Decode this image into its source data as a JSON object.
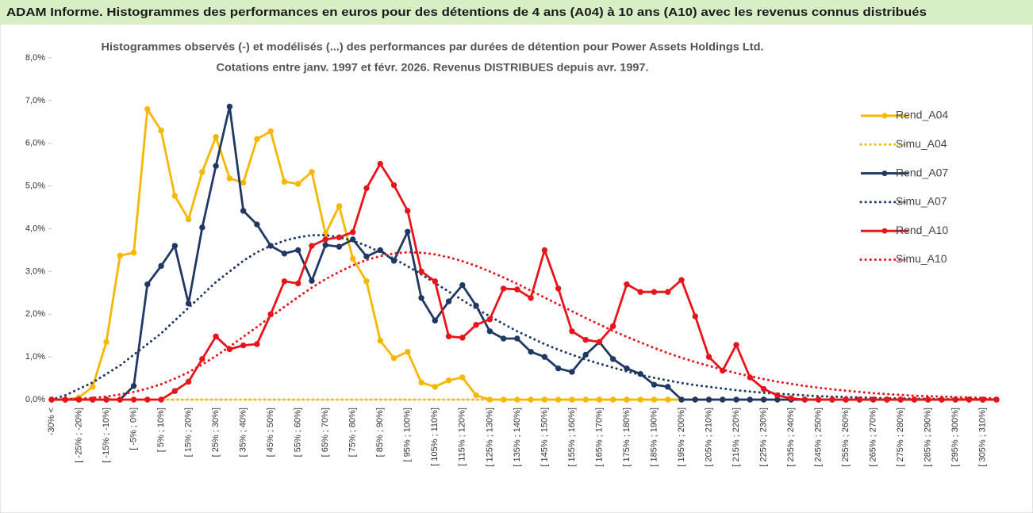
{
  "header": {
    "title": "ADAM Informe. Histogrammes des performances en euros pour des détentions de 4 ans (A04) à 10 ans (A10) avec les revenus connus distribués"
  },
  "chart_data": {
    "type": "line",
    "title": "Histogrammes observés (-) et modélisés (...) des performances par durées de détention pour Power Assets Holdings Ltd.",
    "subtitle": "Cotations entre janv. 1997 et févr. 2026. Revenus DISTRIBUES depuis avr. 1997.",
    "categories": [
      "-30% <",
      null,
      "[ -25% ; -20%]",
      null,
      "[ -15% ; -10%]",
      null,
      "[ -5% ; 0%]",
      null,
      "[ 5% ; 10%]",
      null,
      "[ 15% ; 20%]",
      null,
      "[ 25% ; 30%]",
      null,
      "[ 35% ; 40%]",
      null,
      "[ 45% ; 50%]",
      null,
      "[ 55% ; 60%]",
      null,
      "[ 65% ; 70%]",
      null,
      "[ 75% ; 80%]",
      null,
      "[ 85% ; 90%]",
      null,
      "[ 95% ; 100%]",
      null,
      "[ 105% ; 110%]",
      null,
      "[ 115% ; 120%]",
      null,
      "[ 125% ; 130%]",
      null,
      "[ 135% ; 140%]",
      null,
      "[ 145% ; 150%]",
      null,
      "[ 155% ; 160%]",
      null,
      "[ 165% ; 170%]",
      null,
      "[ 175% ; 180%]",
      null,
      "[ 185% ; 190%]",
      null,
      "[ 195% ; 200%]",
      null,
      "[ 205% ; 210%]",
      null,
      "[ 215% ; 220%]",
      null,
      "[ 225% ; 230%]",
      null,
      "[ 235% ; 240%]",
      null,
      "[ 245% ; 250%]",
      null,
      "[ 255% ; 260%]",
      null,
      "[ 265% ; 270%]",
      null,
      "[ 275% ; 280%]",
      null,
      "[ 285% ; 290%]",
      null,
      "[ 295% ; 300%]",
      null,
      "[ 305% ; 310%]",
      null
    ],
    "ylim": [
      0,
      8
    ],
    "yticks": [
      {
        "value": 0,
        "label": "0,0%"
      },
      {
        "value": 1,
        "label": "1,0%"
      },
      {
        "value": 2,
        "label": "2,0%"
      },
      {
        "value": 3,
        "label": "3,0%"
      },
      {
        "value": 4,
        "label": "4,0%"
      },
      {
        "value": 5,
        "label": "5,0%"
      },
      {
        "value": 6,
        "label": "6,0%"
      },
      {
        "value": 7,
        "label": "7,0%"
      },
      {
        "value": 8,
        "label": "8,0%"
      }
    ],
    "legend": "right",
    "series": [
      {
        "name": "Rend_A04",
        "color": "#f5b700",
        "style": "solid",
        "markers": true,
        "values": [
          0,
          0,
          0.05,
          0.3,
          1.35,
          3.37,
          3.44,
          6.8,
          6.3,
          4.77,
          4.22,
          5.33,
          6.15,
          5.18,
          5.08,
          6.1,
          6.28,
          5.1,
          5.05,
          5.33,
          3.88,
          4.53,
          3.3,
          2.77,
          1.38,
          0.97,
          1.12,
          0.4,
          0.3,
          0.45,
          0.52,
          0.1,
          0,
          0,
          0,
          0,
          0,
          0,
          0,
          0,
          0,
          0,
          0,
          0,
          0,
          0,
          0,
          0,
          0,
          0,
          0,
          0,
          0,
          0,
          0,
          0,
          0,
          0,
          0,
          0,
          0,
          0,
          0,
          0,
          0,
          0,
          0,
          0,
          0,
          0
        ]
      },
      {
        "name": "Simu_A04",
        "color": "#f5b700",
        "style": "dotted",
        "markers": false,
        "values": [
          0,
          0,
          0,
          0,
          0,
          0,
          0,
          0,
          0,
          0,
          0,
          0,
          0,
          0,
          0,
          0,
          0,
          0,
          0,
          0,
          0,
          0,
          0,
          0,
          0,
          0,
          0,
          0,
          0,
          0,
          0,
          0,
          0,
          0,
          0,
          0,
          0,
          0,
          0,
          0,
          0,
          0,
          0,
          0,
          0,
          0,
          0,
          0,
          0,
          0,
          0,
          0,
          0,
          0,
          0,
          0,
          0,
          0,
          0,
          0,
          0,
          0,
          0,
          0,
          0,
          0,
          0,
          0,
          0,
          0
        ]
      },
      {
        "name": "Rend_A07",
        "color": "#1f3864",
        "style": "solid",
        "markers": true,
        "values": [
          0,
          0,
          0,
          0,
          0,
          0,
          0.32,
          2.7,
          3.13,
          3.6,
          2.25,
          4.03,
          5.47,
          6.86,
          4.42,
          4.1,
          3.6,
          3.42,
          3.5,
          2.78,
          3.62,
          3.58,
          3.75,
          3.35,
          3.5,
          3.25,
          3.93,
          2.38,
          1.85,
          2.3,
          2.68,
          2.2,
          1.6,
          1.43,
          1.43,
          1.12,
          1.0,
          0.73,
          0.65,
          1.05,
          1.35,
          0.95,
          0.73,
          0.6,
          0.35,
          0.3,
          0,
          0,
          0,
          0,
          0,
          0,
          0,
          0,
          0,
          0,
          0,
          0,
          0,
          0,
          0,
          0,
          0,
          0,
          0,
          0,
          0,
          0,
          0,
          0
        ]
      },
      {
        "name": "Simu_A07",
        "color": "#1f3864",
        "style": "dotted",
        "markers": false,
        "values": [
          0,
          0.1,
          0.25,
          0.4,
          0.6,
          0.8,
          1.05,
          1.3,
          1.55,
          1.85,
          2.15,
          2.45,
          2.75,
          3.0,
          3.25,
          3.45,
          3.6,
          3.72,
          3.8,
          3.85,
          3.85,
          3.8,
          3.72,
          3.6,
          3.45,
          3.3,
          3.12,
          2.93,
          2.73,
          2.53,
          2.33,
          2.13,
          1.95,
          1.77,
          1.6,
          1.45,
          1.3,
          1.17,
          1.05,
          0.94,
          0.84,
          0.75,
          0.66,
          0.58,
          0.51,
          0.45,
          0.39,
          0.34,
          0.3,
          0.26,
          0.22,
          0.19,
          0.16,
          0.14,
          0.12,
          0.1,
          0.08,
          0.07,
          0.06,
          0.05,
          0.04,
          0.03,
          0.03,
          0.02,
          0.02,
          0.01,
          0.01,
          0.01,
          0.01,
          0
        ]
      },
      {
        "name": "Rend_A10",
        "color": "#e8141b",
        "style": "solid",
        "markers": true,
        "values": [
          0,
          0,
          0,
          0,
          0,
          0,
          0,
          0,
          0,
          0.2,
          0.42,
          0.95,
          1.48,
          1.18,
          1.27,
          1.3,
          2.0,
          2.77,
          2.72,
          3.6,
          3.75,
          3.8,
          3.92,
          4.95,
          5.52,
          5.02,
          4.42,
          3.0,
          2.77,
          1.48,
          1.45,
          1.75,
          1.88,
          2.6,
          2.58,
          2.38,
          3.5,
          2.6,
          1.6,
          1.4,
          1.35,
          1.72,
          2.7,
          2.52,
          2.52,
          2.52,
          2.8,
          1.95,
          1.0,
          0.68,
          1.28,
          0.52,
          0.25,
          0.1,
          0.03,
          0,
          0,
          0,
          0,
          0,
          0,
          0,
          0,
          0,
          0,
          0,
          0,
          0,
          0,
          0
        ]
      },
      {
        "name": "Simu_A10",
        "color": "#e8141b",
        "style": "dotted",
        "markers": false,
        "values": [
          0,
          0.01,
          0.02,
          0.04,
          0.07,
          0.12,
          0.18,
          0.26,
          0.36,
          0.49,
          0.64,
          0.82,
          1.02,
          1.24,
          1.47,
          1.7,
          1.94,
          2.17,
          2.4,
          2.62,
          2.82,
          2.99,
          3.14,
          3.27,
          3.36,
          3.42,
          3.45,
          3.44,
          3.4,
          3.33,
          3.24,
          3.13,
          3.0,
          2.86,
          2.71,
          2.55,
          2.39,
          2.23,
          2.07,
          1.91,
          1.76,
          1.61,
          1.47,
          1.34,
          1.21,
          1.09,
          0.98,
          0.88,
          0.79,
          0.7,
          0.62,
          0.55,
          0.48,
          0.42,
          0.37,
          0.32,
          0.28,
          0.24,
          0.21,
          0.18,
          0.15,
          0.13,
          0.11,
          0.09,
          0.08,
          0.07,
          0.06,
          0.05,
          0.04,
          0.03
        ]
      }
    ]
  }
}
